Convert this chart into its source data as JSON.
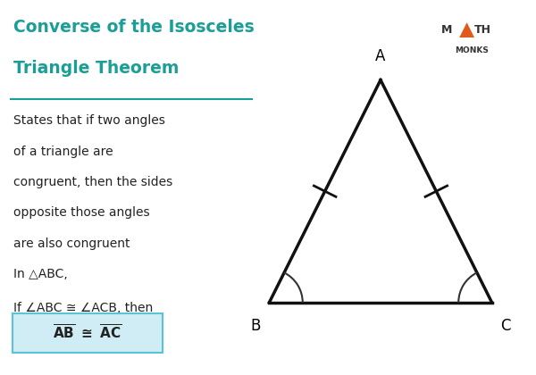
{
  "title_line1": "Converse of the Isosceles",
  "title_line2": "Triangle Theorem",
  "title_color": "#1a9e96",
  "underline_color": "#1a9e96",
  "body_lines": [
    "States that if two angles",
    "of a triangle are",
    "congruent, then the sides",
    "opposite those angles",
    "are also congruent"
  ],
  "in_triangle": "In △ABC,",
  "if_text": "If ∠ABC ≅ ∠ACB, then",
  "conclusion_box_color": "#d0ecf5",
  "conclusion_border_color": "#5bc4d4",
  "bg_color": "#ffffff",
  "text_color": "#222222",
  "triangle_color": "#111111",
  "vertex_A": [
    0.5,
    1.0
  ],
  "vertex_B": [
    0.0,
    0.0
  ],
  "vertex_C": [
    1.0,
    0.0
  ],
  "label_A": "A",
  "label_B": "B",
  "label_C": "C",
  "mathmonks_color": "#333333",
  "triangle_orange": "#e05a1e"
}
